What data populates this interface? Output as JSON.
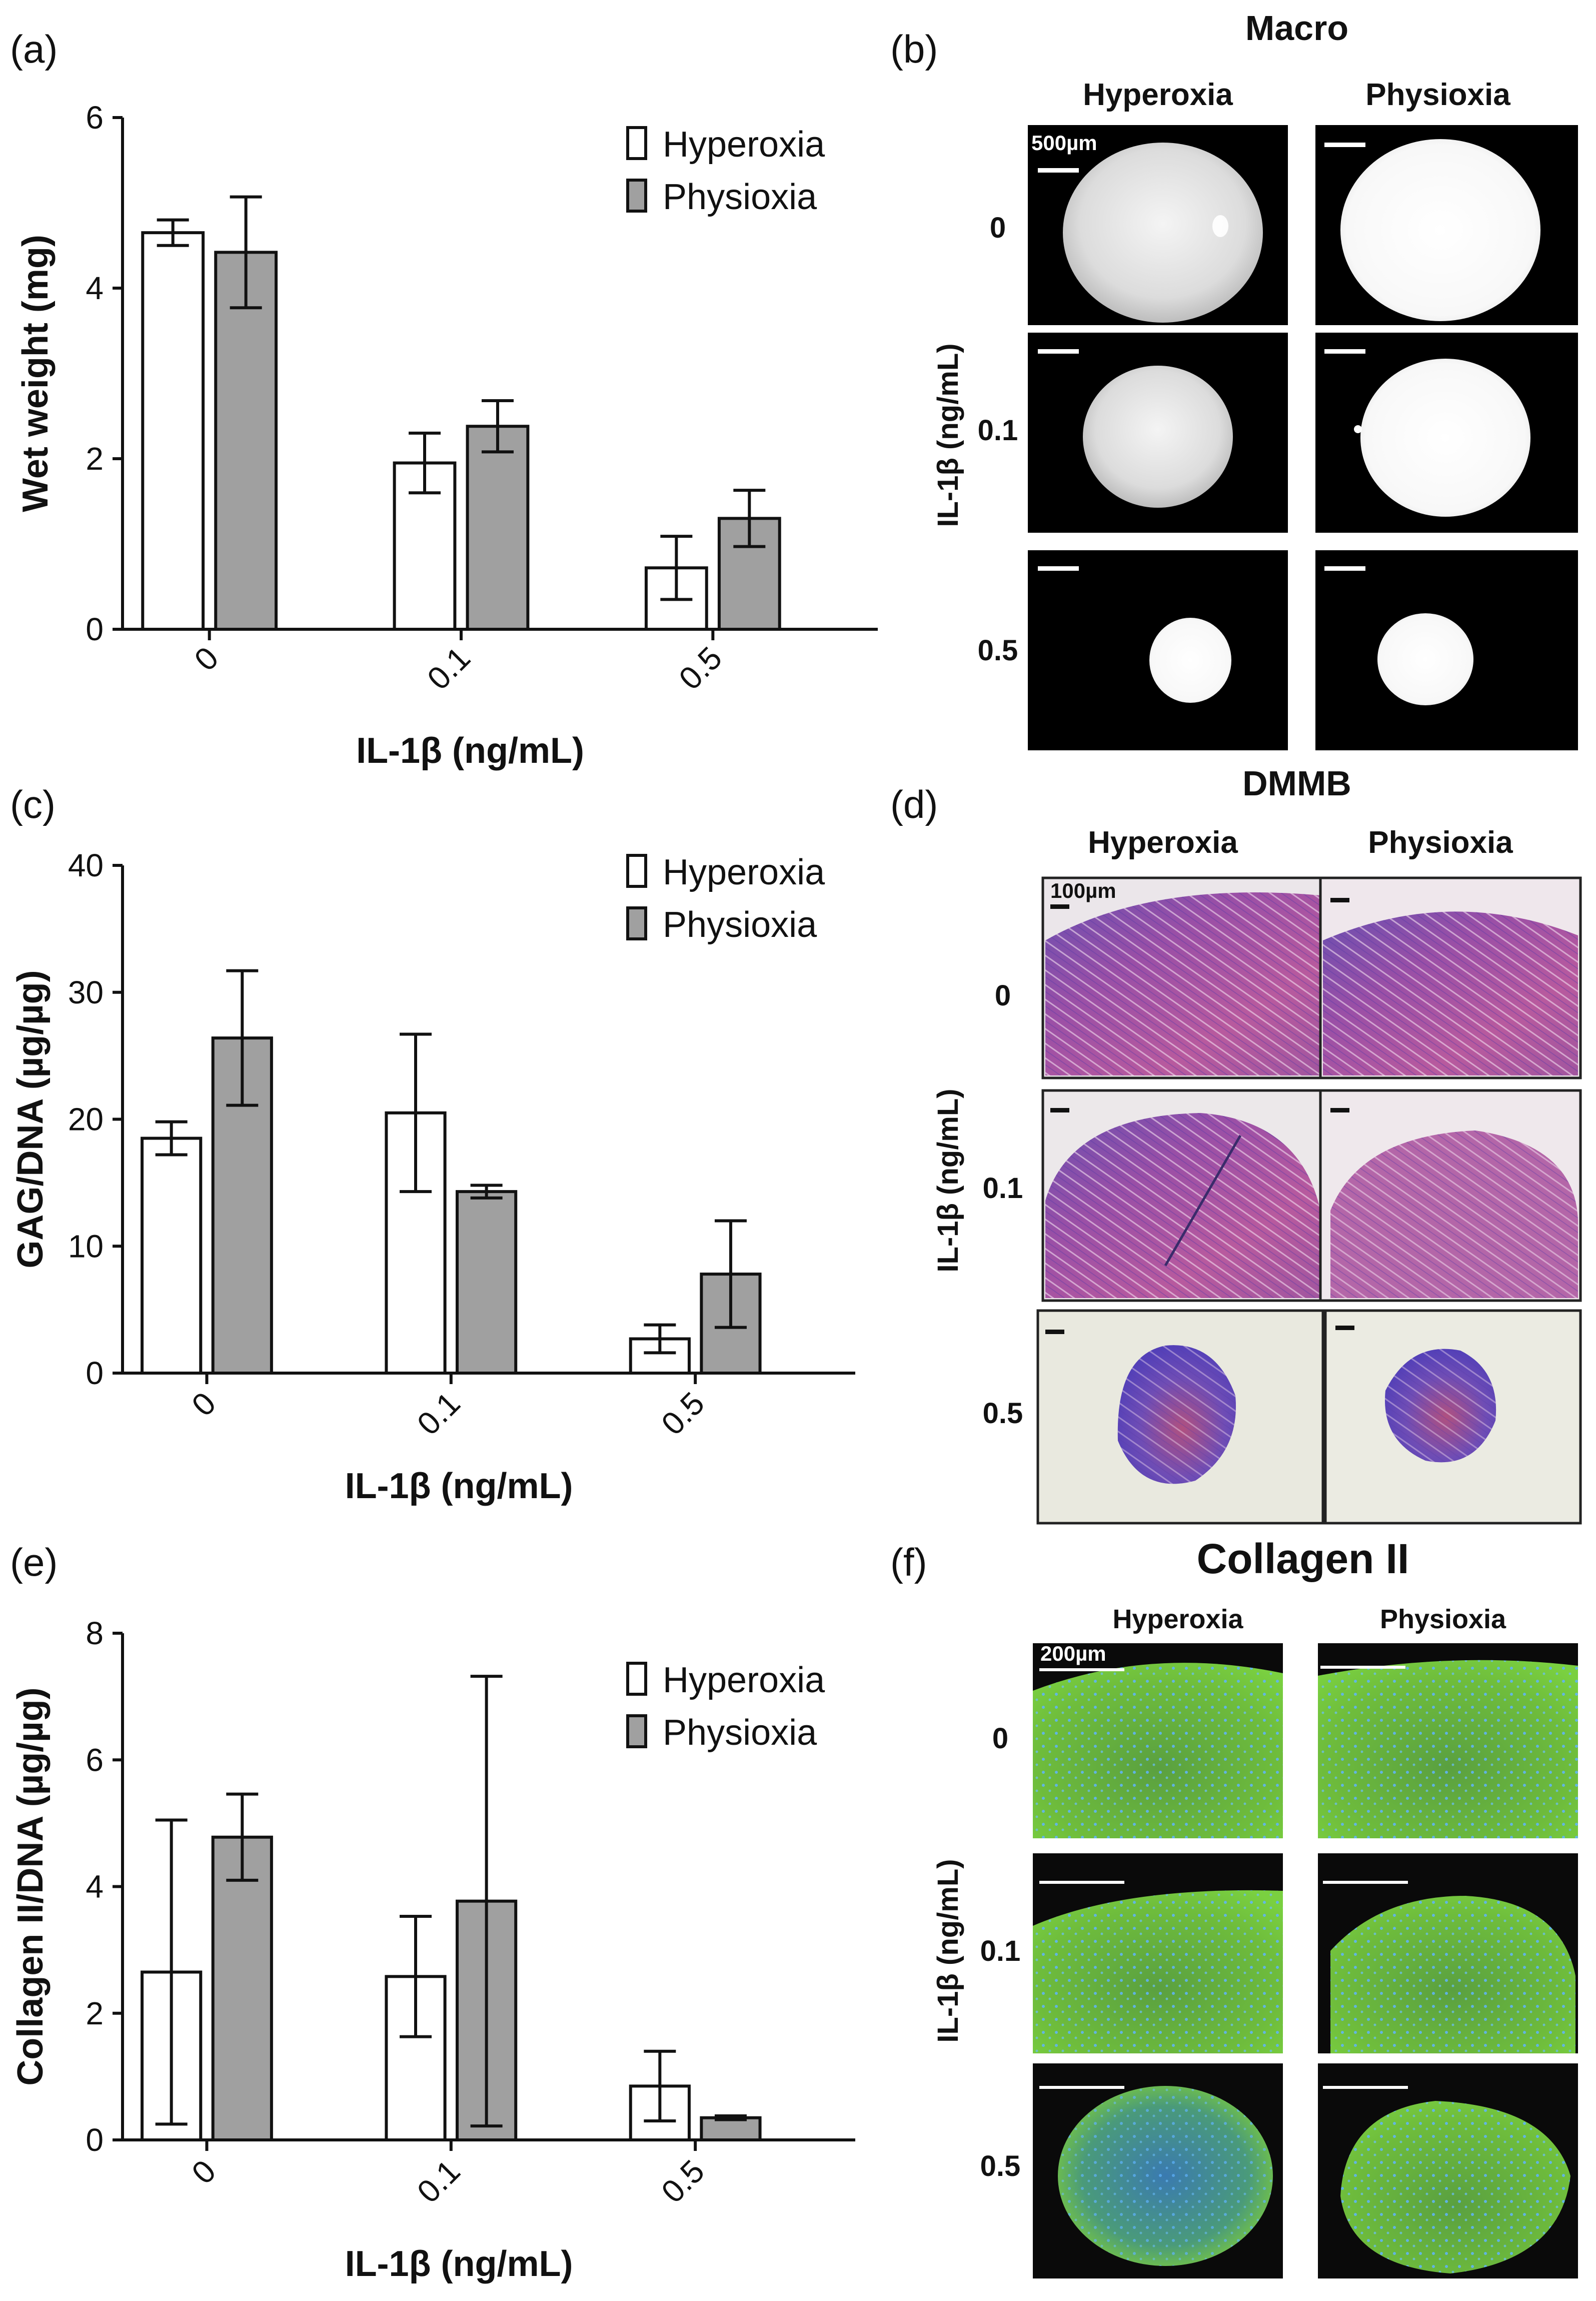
{
  "panel_labels": [
    "(a)",
    "(b)",
    "(c)",
    "(d)",
    "(e)",
    "(f)"
  ],
  "chart_data": [
    {
      "type": "bar",
      "panel": "(a)",
      "title": "",
      "xlabel": "IL-1β (ng/mL)",
      "ylabel": "Wet weight (mg)",
      "categories": [
        "0",
        "0.1",
        "0.5"
      ],
      "ylim": [
        0,
        6
      ],
      "yticks": [
        0,
        2,
        4,
        6
      ],
      "legend_position": "top-right",
      "series": [
        {
          "name": "Hyperoxia",
          "color": "#ffffff",
          "values": [
            4.65,
            1.95,
            0.72
          ],
          "errors": [
            0.15,
            0.35,
            0.37
          ]
        },
        {
          "name": "Physioxia",
          "color": "#a0a0a0",
          "values": [
            4.42,
            2.38,
            1.3
          ],
          "errors": [
            0.65,
            0.3,
            0.33
          ]
        }
      ]
    },
    {
      "type": "bar",
      "panel": "(c)",
      "title": "",
      "xlabel": "IL-1β (ng/mL)",
      "ylabel": "GAG/DNA (µg/µg)",
      "categories": [
        "0",
        "0.1",
        "0.5"
      ],
      "ylim": [
        0,
        40
      ],
      "yticks": [
        0,
        10,
        20,
        30,
        40
      ],
      "legend_position": "top-right",
      "series": [
        {
          "name": "Hyperoxia",
          "color": "#ffffff",
          "values": [
            18.5,
            20.5,
            2.7
          ],
          "errors": [
            1.3,
            6.2,
            1.1
          ]
        },
        {
          "name": "Physioxia",
          "color": "#a0a0a0",
          "values": [
            26.4,
            14.3,
            7.8
          ],
          "errors": [
            5.3,
            0.5,
            4.2
          ]
        }
      ]
    },
    {
      "type": "bar",
      "panel": "(e)",
      "title": "",
      "xlabel": "IL-1β (ng/mL)",
      "ylabel": "Collagen II/DNA (µg/µg)",
      "categories": [
        "0",
        "0.1",
        "0.5"
      ],
      "ylim": [
        0,
        8
      ],
      "yticks": [
        0,
        2,
        4,
        6,
        8
      ],
      "legend_position": "top-right",
      "series": [
        {
          "name": "Hyperoxia",
          "color": "#ffffff",
          "values": [
            2.65,
            2.58,
            0.85
          ],
          "errors": [
            2.4,
            0.95,
            0.55
          ]
        },
        {
          "name": "Physioxia",
          "color": "#a0a0a0",
          "values": [
            4.78,
            3.77,
            0.35
          ],
          "errors": [
            0.68,
            3.55,
            0.03
          ]
        }
      ]
    }
  ],
  "image_panels": [
    {
      "panel": "(b)",
      "title": "Macro",
      "columns": [
        "Hyperoxia",
        "Physioxia"
      ],
      "rows": [
        "0",
        "0.1",
        "0.5"
      ],
      "row_axis_label": "IL-1β (ng/mL)",
      "scale_bar": "500µm",
      "style": "macro"
    },
    {
      "panel": "(d)",
      "title": "DMMB",
      "columns": [
        "Hyperoxia",
        "Physioxia"
      ],
      "rows": [
        "0",
        "0.1",
        "0.5"
      ],
      "row_axis_label": "IL-1β (ng/mL)",
      "scale_bar": "100µm",
      "style": "dmmb"
    },
    {
      "panel": "(f)",
      "title": "Collagen II",
      "columns": [
        "Hyperoxia",
        "Physioxia"
      ],
      "rows": [
        "0",
        "0.1",
        "0.5"
      ],
      "row_axis_label": "IL-1β (ng/mL)",
      "scale_bar": "200µm",
      "style": "fluor"
    }
  ]
}
